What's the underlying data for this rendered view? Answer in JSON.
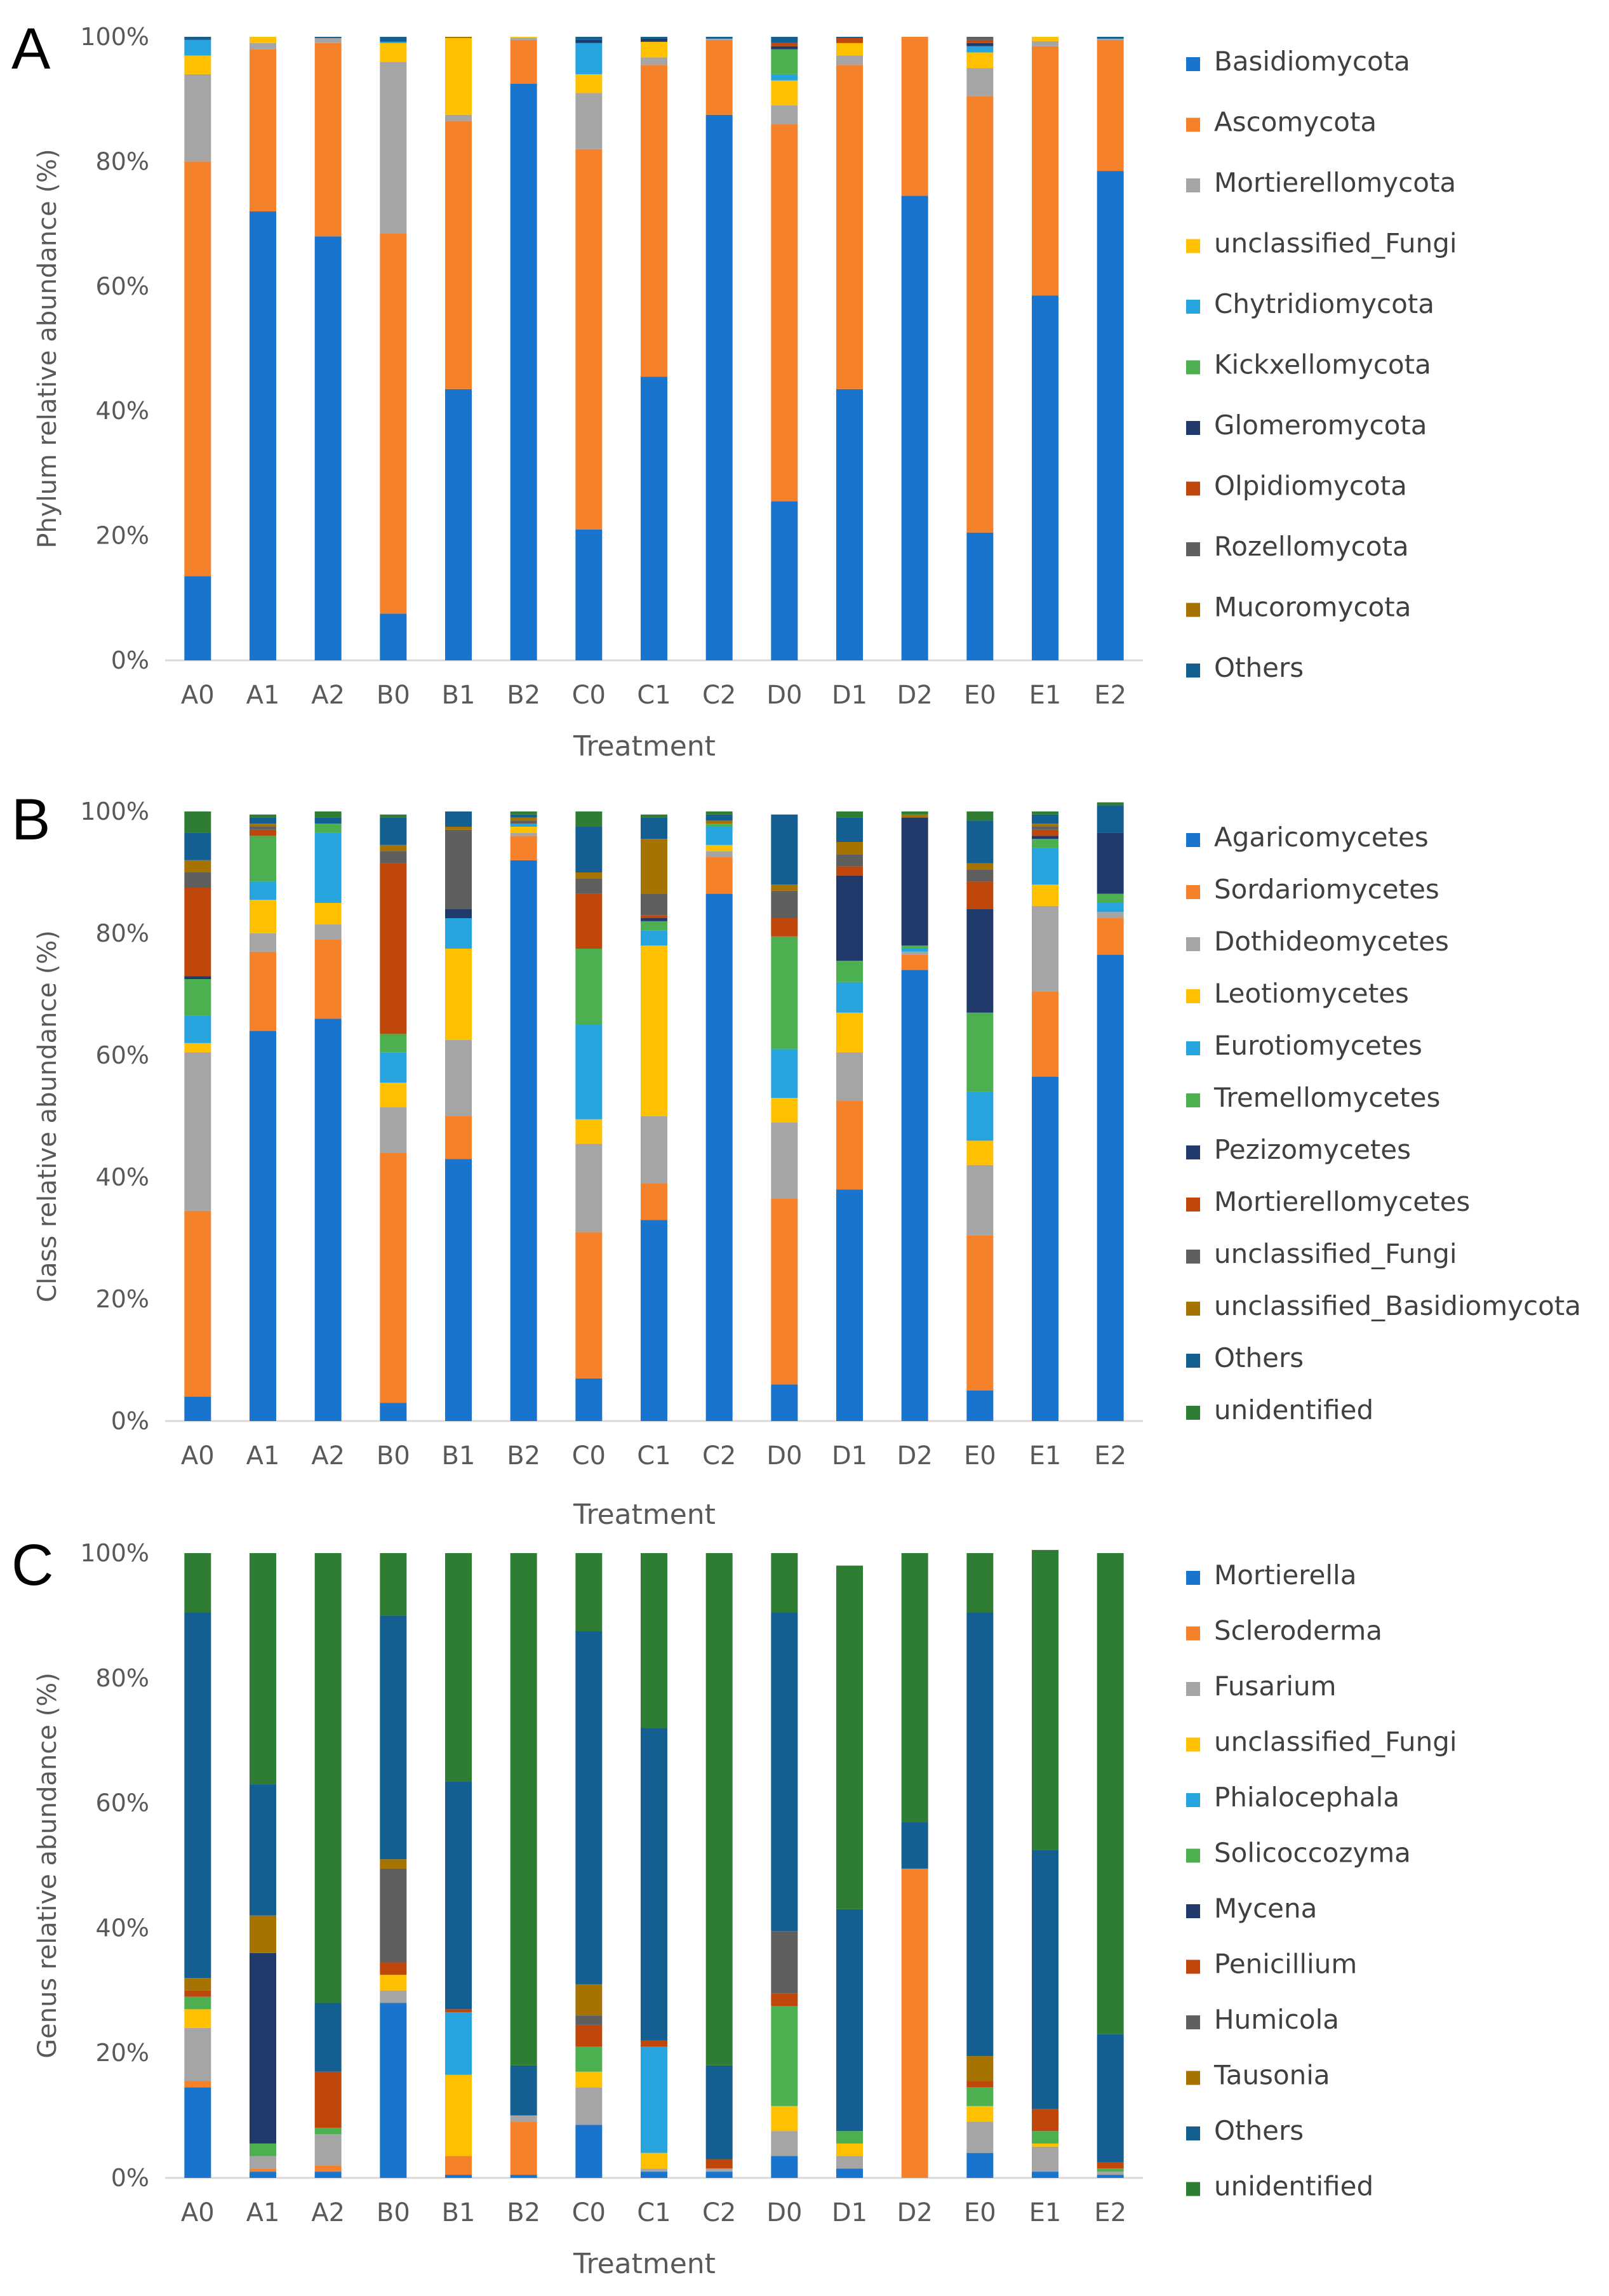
{
  "chart_data": [
    {
      "type": "bar",
      "stacked": true,
      "panel": "A",
      "ylabel": "Phylum relative abundance (%)",
      "xlabel": "Treatment",
      "ylim": [
        0,
        100
      ],
      "yticks": [
        "0%",
        "20%",
        "40%",
        "60%",
        "80%",
        "100%"
      ],
      "categories": [
        "A0",
        "A1",
        "A2",
        "B0",
        "B1",
        "B2",
        "C0",
        "C1",
        "C2",
        "D0",
        "D1",
        "D2",
        "E0",
        "E1",
        "E2"
      ],
      "series": [
        {
          "name": "Basidiomycota",
          "color": "#1874CD",
          "values": [
            13.5,
            72,
            68,
            7.5,
            43.5,
            92.5,
            21,
            45.5,
            87.5,
            25.5,
            43.5,
            74.5,
            20.5,
            58.5,
            78.5
          ]
        },
        {
          "name": "Ascomycota",
          "color": "#F5822A",
          "values": [
            66.5,
            26,
            31,
            61,
            43,
            7,
            61,
            50,
            12,
            60.5,
            52,
            25.5,
            70,
            40,
            21
          ]
        },
        {
          "name": "Mortierellomycota",
          "color": "#A5A5A5",
          "values": [
            14,
            1,
            0.8,
            27.5,
            1,
            0.3,
            9,
            1.2,
            0.2,
            3,
            1.5,
            0,
            4.5,
            0.8,
            0.2
          ]
        },
        {
          "name": "unclassified_Fungi",
          "color": "#FFC000",
          "values": [
            3,
            1,
            0,
            3,
            12.3,
            0.2,
            3,
            2.5,
            0,
            4,
            2,
            0,
            2.5,
            0.7,
            0
          ]
        },
        {
          "name": "Chytridiomycota",
          "color": "#27A4DD",
          "values": [
            2.5,
            0,
            0,
            0.2,
            0,
            0,
            5,
            0,
            0,
            1,
            0,
            0,
            1,
            0,
            0
          ]
        },
        {
          "name": "Kickxellomycota",
          "color": "#4CAF50",
          "values": [
            0,
            0,
            0,
            0,
            0,
            0,
            0,
            0,
            0,
            4,
            0,
            0,
            0,
            0,
            0
          ]
        },
        {
          "name": "Glomeromycota",
          "color": "#1F3A6B",
          "values": [
            0,
            0,
            0,
            0,
            0,
            0,
            0.5,
            0.5,
            0,
            0.5,
            0,
            0,
            0.5,
            0,
            0
          ]
        },
        {
          "name": "Olpidiomycota",
          "color": "#C0470C",
          "values": [
            0,
            0,
            0,
            0,
            0,
            0,
            0,
            0,
            0,
            0.5,
            0.8,
            0,
            0.5,
            0,
            0
          ]
        },
        {
          "name": "Rozellomycota",
          "color": "#5F5F5F",
          "values": [
            0,
            0,
            0,
            0,
            0,
            0,
            0,
            0,
            0,
            0,
            0,
            0,
            0.5,
            0,
            0
          ]
        },
        {
          "name": "Mucoromycota",
          "color": "#A67300",
          "values": [
            0,
            0,
            0,
            0,
            0.2,
            0,
            0,
            0,
            0,
            0,
            0,
            0,
            0,
            0,
            0
          ]
        },
        {
          "name": "Others",
          "color": "#145F91",
          "values": [
            0.5,
            0,
            0.2,
            0.8,
            0,
            0,
            0.5,
            0.3,
            0.3,
            1,
            0.2,
            0,
            0,
            0,
            0.3
          ]
        }
      ]
    },
    {
      "type": "bar",
      "stacked": true,
      "panel": "B",
      "ylabel": "Class relative abundance (%)",
      "xlabel": "Treatment",
      "ylim": [
        0,
        100
      ],
      "yticks": [
        "0%",
        "20%",
        "40%",
        "60%",
        "80%",
        "100%"
      ],
      "categories": [
        "A0",
        "A1",
        "A2",
        "B0",
        "B1",
        "B2",
        "C0",
        "C1",
        "C2",
        "D0",
        "D1",
        "D2",
        "E0",
        "E1",
        "E2"
      ],
      "series": [
        {
          "name": "Agaricomycetes",
          "color": "#1874CD",
          "values": [
            4,
            64,
            66,
            3,
            43,
            92,
            7,
            33,
            86.5,
            6,
            38,
            74,
            5,
            56.5,
            76.5
          ]
        },
        {
          "name": "Sordariomycetes",
          "color": "#F5822A",
          "values": [
            30.5,
            13,
            13,
            41,
            7,
            4,
            24,
            6,
            6,
            30.5,
            14.5,
            2.5,
            25.5,
            14,
            6
          ]
        },
        {
          "name": "Dothideomycetes",
          "color": "#A5A5A5",
          "values": [
            26,
            3,
            2.5,
            7.5,
            12.5,
            0.5,
            14.5,
            11,
            1,
            12.5,
            8,
            0.5,
            11.5,
            14,
            1
          ]
        },
        {
          "name": "Leotiomycetes",
          "color": "#FFC000",
          "values": [
            1.5,
            5.5,
            3.5,
            4,
            15,
            1,
            4,
            28,
            1,
            4,
            6.5,
            0,
            4,
            3.5,
            0
          ]
        },
        {
          "name": "Eurotiomycetes",
          "color": "#27A4DD",
          "values": [
            4.5,
            3,
            11.5,
            5,
            5,
            0.5,
            15.5,
            2.5,
            3,
            8,
            5,
            0.5,
            8,
            6,
            1.5
          ]
        },
        {
          "name": "Tremellomycetes",
          "color": "#4CAF50",
          "values": [
            6,
            7.5,
            1.5,
            3,
            0,
            0,
            12.5,
            1.5,
            0.5,
            18.5,
            3.5,
            0.5,
            13,
            1.5,
            1.5
          ]
        },
        {
          "name": "Pezizomycetes",
          "color": "#1F3A6B",
          "values": [
            0.5,
            0,
            0,
            0,
            1.5,
            0,
            0,
            0.5,
            0,
            0,
            14,
            21,
            17,
            0.5,
            10
          ]
        },
        {
          "name": "Mortierellomycetes",
          "color": "#C0470C",
          "values": [
            14.5,
            1,
            0,
            28,
            0,
            0,
            9,
            0.5,
            0,
            3,
            1.5,
            0,
            4.5,
            1,
            0
          ]
        },
        {
          "name": "unclassified_Fungi",
          "color": "#5F5F5F",
          "values": [
            2.5,
            0.5,
            0,
            2,
            13,
            0.5,
            2.5,
            3.5,
            0,
            4.5,
            2,
            0,
            2,
            0.5,
            0
          ]
        },
        {
          "name": "unclassified_Basidiomycota",
          "color": "#A67300",
          "values": [
            2,
            0.5,
            0,
            1,
            0.5,
            0.5,
            1,
            9,
            0.5,
            1,
            2,
            0.5,
            1,
            0.5,
            0
          ]
        },
        {
          "name": "Others",
          "color": "#145F91",
          "values": [
            4.5,
            1,
            1,
            4.5,
            2.5,
            0.5,
            7.5,
            3.5,
            1,
            11.5,
            4,
            0,
            7,
            1.5,
            4.5
          ]
        },
        {
          "name": "unidentified",
          "color": "#2E7D32",
          "values": [
            3.5,
            0.5,
            1,
            0.5,
            0,
            0.5,
            2.5,
            0.5,
            0.5,
            0,
            1,
            0.5,
            1.5,
            0.5,
            0.5
          ]
        }
      ]
    },
    {
      "type": "bar",
      "stacked": true,
      "panel": "C",
      "ylabel": "Genus relative abundance (%)",
      "xlabel": "Treatment",
      "ylim": [
        0,
        100
      ],
      "yticks": [
        "0%",
        "20%",
        "40%",
        "60%",
        "80%",
        "100%"
      ],
      "categories": [
        "A0",
        "A1",
        "A2",
        "B0",
        "B1",
        "B2",
        "C0",
        "C1",
        "C2",
        "D0",
        "D1",
        "D2",
        "E0",
        "E1",
        "E2"
      ],
      "series": [
        {
          "name": "Mortierella",
          "color": "#1874CD",
          "values": [
            14.5,
            1,
            1,
            28,
            0.5,
            0.5,
            8.5,
            1,
            1,
            3.5,
            1.5,
            0,
            4,
            1,
            0.5
          ]
        },
        {
          "name": "Scleroderma",
          "color": "#F5822A",
          "values": [
            1,
            0.5,
            1,
            0,
            3,
            8.5,
            0,
            0,
            0,
            0,
            0,
            49.5,
            0,
            0,
            0
          ]
        },
        {
          "name": "Fusarium",
          "color": "#A5A5A5",
          "values": [
            8.5,
            2,
            5,
            2,
            0,
            1,
            6,
            0.5,
            0.5,
            4,
            2,
            0,
            5,
            4,
            0.5
          ]
        },
        {
          "name": "unclassified_Fungi",
          "color": "#FFC000",
          "values": [
            3,
            0,
            0,
            2.5,
            13,
            0,
            2.5,
            2.5,
            0,
            4,
            2,
            0,
            2.5,
            0.5,
            0
          ]
        },
        {
          "name": "Phialocephala",
          "color": "#27A4DD",
          "values": [
            0,
            0,
            0,
            0,
            10,
            0,
            0,
            17,
            0,
            0,
            0,
            0,
            0,
            0,
            0
          ]
        },
        {
          "name": "Solicoccozyma",
          "color": "#4CAF50",
          "values": [
            2,
            2,
            1,
            0,
            0,
            0,
            4,
            0,
            0,
            16,
            2,
            0,
            3,
            2,
            0.5
          ]
        },
        {
          "name": "Mycena",
          "color": "#1F3A6B",
          "values": [
            0,
            30.5,
            0,
            0,
            0,
            0,
            0,
            0,
            0,
            0,
            0,
            0,
            0,
            0,
            0
          ]
        },
        {
          "name": "Penicillium",
          "color": "#C0470C",
          "values": [
            1,
            0,
            9,
            2,
            0.5,
            0,
            3.5,
            1,
            1.5,
            2,
            0,
            0,
            1,
            3.5,
            1
          ]
        },
        {
          "name": "Humicola",
          "color": "#5F5F5F",
          "values": [
            0,
            0,
            0,
            15,
            0,
            0,
            1.5,
            0,
            0,
            10,
            0,
            0,
            0,
            0,
            0
          ]
        },
        {
          "name": "Tausonia",
          "color": "#A67300",
          "values": [
            2,
            6,
            0,
            1.5,
            0,
            0,
            5,
            0,
            0,
            0,
            0,
            0,
            4,
            0,
            0
          ]
        },
        {
          "name": "Others",
          "color": "#145F91",
          "values": [
            58.5,
            21,
            11,
            39,
            36.5,
            8,
            56.5,
            50,
            15,
            51,
            35.5,
            7.5,
            71,
            41.5,
            20.5
          ]
        },
        {
          "name": "unidentified",
          "color": "#2E7D32",
          "values": [
            9.5,
            37,
            72,
            10,
            36.5,
            82,
            12.5,
            28,
            82,
            9.5,
            55,
            43,
            9.5,
            48,
            77
          ]
        }
      ]
    }
  ]
}
